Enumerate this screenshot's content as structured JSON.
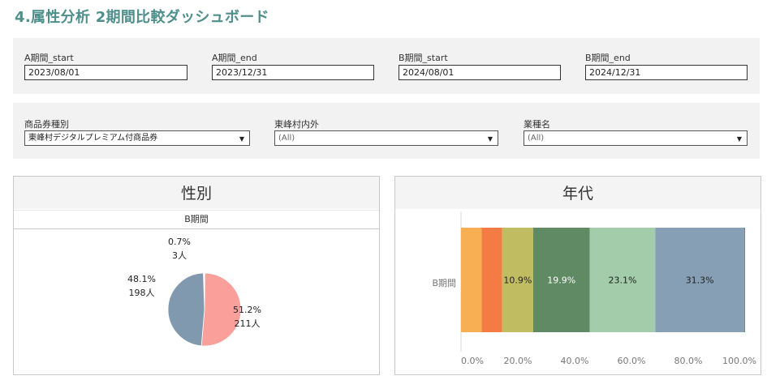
{
  "title": "4.属性分析 2期間比較ダッシュボード",
  "dates": [
    {
      "label": "A期間_start",
      "value": "2023/08/01"
    },
    {
      "label": "A期間_end",
      "value": "2023/12/31"
    },
    {
      "label": "B期間_start",
      "value": "2024/08/01"
    },
    {
      "label": "B期間_end",
      "value": "2024/12/31"
    }
  ],
  "filters": [
    {
      "label": "商品券種別",
      "value": "東峰村デジタルプレミアム付商品券"
    },
    {
      "label": "東峰村内外",
      "value": "(All)"
    },
    {
      "label": "業種名",
      "value": "(All)"
    }
  ],
  "gender_card": {
    "title": "性別",
    "subheader": "B期間",
    "labels": [
      {
        "pct": "0.7%",
        "count": "3人"
      },
      {
        "pct": "48.1%",
        "count": "198人"
      },
      {
        "pct": "51.2%",
        "count": "211人"
      }
    ]
  },
  "age_card": {
    "title": "年代",
    "row_label": "B期間"
  },
  "colors": {
    "title": "#4f8f8b",
    "pie": [
      "#ffffff",
      "#8099ae",
      "#fb9f9b"
    ],
    "bar": [
      "#f8ae52",
      "#f47b44",
      "#c0bc62",
      "#5f8a63",
      "#a2ccaa",
      "#869fb4",
      "#e0594e"
    ]
  },
  "chart_data": [
    {
      "type": "pie",
      "title": "性別",
      "categories": [
        "",
        "",
        ""
      ],
      "values": [
        0.7,
        48.1,
        51.2
      ],
      "counts": [
        3,
        198,
        211
      ]
    },
    {
      "type": "bar",
      "orientation": "horizontal-stacked",
      "title": "年代",
      "categories": [
        "B期間"
      ],
      "segments": [
        7.3,
        7.2,
        10.9,
        19.9,
        23.1,
        31.3,
        0.3
      ],
      "segment_labels": [
        "",
        "",
        "10.9%",
        "19.9%",
        "23.1%",
        "31.3%",
        ""
      ],
      "label_colors": [
        "#222",
        "#222",
        "#222",
        "#ffffff",
        "#222",
        "#222",
        "#222"
      ],
      "xticks": [
        "0.0%",
        "20.0%",
        "40.0%",
        "60.0%",
        "80.0%",
        "100.0%"
      ],
      "xlim": [
        0,
        100
      ]
    }
  ]
}
